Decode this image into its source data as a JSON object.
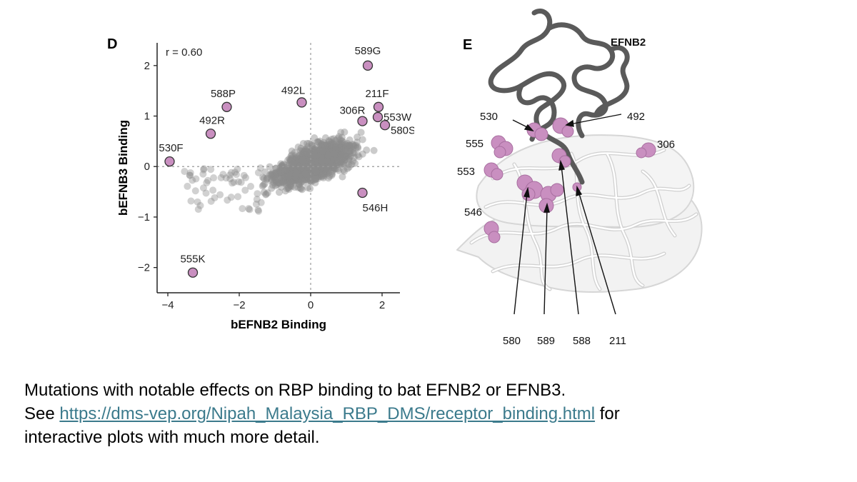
{
  "panel_d": {
    "letter": "D",
    "corr": "r = 0.60"
  },
  "panel_e": {
    "letter": "E",
    "receptor_label": "EFNB2",
    "colors": {
      "receptor": "#5a5a5a",
      "protein": "#dcdcdc",
      "highlight": "#c98fc0"
    },
    "residue_labels": [
      "530",
      "492",
      "555",
      "306",
      "553",
      "546",
      "580",
      "589",
      "588",
      "211"
    ]
  },
  "chart_data": {
    "type": "scatter",
    "xlabel": "bEFNB2 Binding",
    "ylabel": "bEFNB3 Binding",
    "xlim": [
      -4.3,
      2.5
    ],
    "ylim": [
      -2.5,
      2.45
    ],
    "xticks": [
      -4,
      -2,
      0,
      2
    ],
    "yticks": [
      -2,
      -1,
      0,
      1,
      2
    ],
    "reference_lines": {
      "x": 0,
      "y": 0
    },
    "colors": {
      "background_points": "#8c8c8c",
      "highlight_fill": "#c98fc0",
      "highlight_stroke": "#333333"
    },
    "highlighted": [
      {
        "label": "589G",
        "x": 1.6,
        "y": 2.0
      },
      {
        "label": "492L",
        "x": -0.25,
        "y": 1.27
      },
      {
        "label": "588P",
        "x": -2.35,
        "y": 1.18
      },
      {
        "label": "211F",
        "x": 1.9,
        "y": 1.18
      },
      {
        "label": "306R",
        "x": 1.45,
        "y": 0.9
      },
      {
        "label": "553W",
        "x": 1.88,
        "y": 0.98
      },
      {
        "label": "580S",
        "x": 2.08,
        "y": 0.82
      },
      {
        "label": "492R",
        "x": -2.8,
        "y": 0.65
      },
      {
        "label": "530F",
        "x": -3.95,
        "y": 0.1
      },
      {
        "label": "546H",
        "x": 1.45,
        "y": -0.52
      },
      {
        "label": "555K",
        "x": -3.3,
        "y": -2.1
      }
    ]
  },
  "caption": {
    "line1": "Mutations with notable effects on RBP binding to bat EFNB2 or EFNB3.",
    "line2_pre": "See ",
    "link": "https://dms-vep.org/Nipah_Malaysia_RBP_DMS/receptor_binding.html",
    "line2_post": " for",
    "line3": "interactive plots with much more detail."
  }
}
